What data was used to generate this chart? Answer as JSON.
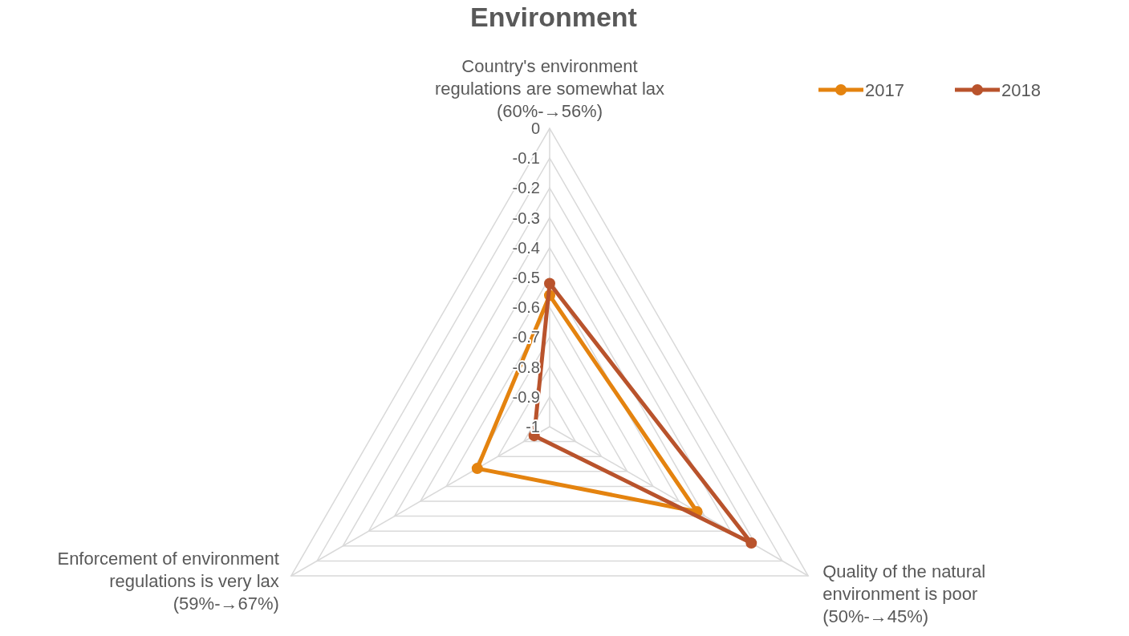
{
  "chart_data": {
    "type": "radar",
    "title": "Environment",
    "categories": [
      "Country's environment regulations are somewhat lax (60%-→56%)",
      "Quality of the natural environment is poor  (50%-→45%)",
      "Enforcement of environment regulations is very lax (59%-→67%)"
    ],
    "series": [
      {
        "name": "2017",
        "color": "#e4830f",
        "values": [
          -0.56,
          -0.43,
          -0.72
        ]
      },
      {
        "name": "2018",
        "color": "#b9532c",
        "values": [
          -0.52,
          -0.22,
          -0.94
        ]
      }
    ],
    "ylim": [
      -1,
      0
    ],
    "yticks": [
      0,
      -0.1,
      -0.2,
      -0.3,
      -0.4,
      -0.5,
      -0.6,
      -0.7,
      -0.8,
      -0.9,
      -1
    ],
    "grid": true,
    "legend": "top right",
    "marker": "circle"
  }
}
